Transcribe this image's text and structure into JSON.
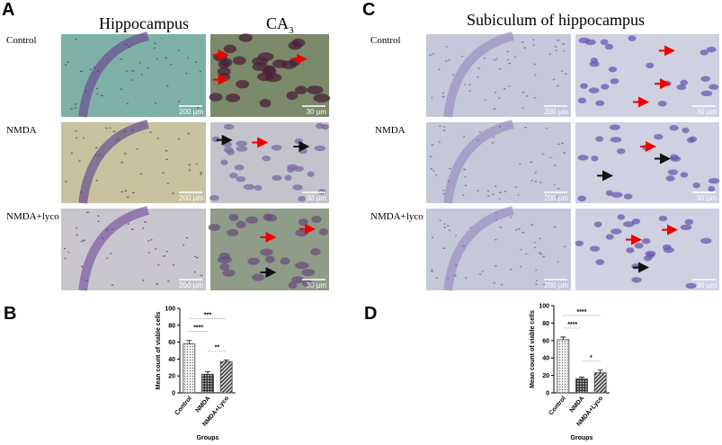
{
  "panel_labels": [
    "A",
    "B",
    "C",
    "D"
  ],
  "panel_A": {
    "titles": [
      "Hippocampus",
      "CA"
    ],
    "title_subscript": "3",
    "rows": [
      "Control",
      "NMDA",
      "NMDA+lyco"
    ],
    "scale_bars": [
      "200 µm",
      "30 µm"
    ]
  },
  "panel_C": {
    "title": "Subiculum of hippocampus",
    "rows": [
      "Control",
      "NMDA",
      "NMDA+lyco"
    ],
    "scale_bars": [
      "200 µm",
      "30 µm"
    ]
  },
  "chart_data": [
    {
      "type": "bar",
      "y_label": "Mean count of viable cells",
      "x_label": "Groups",
      "categories": [
        "Control",
        "NMDA",
        "NMDA+Lyco"
      ],
      "values": [
        58,
        22,
        37
      ],
      "errors": [
        4,
        3,
        2
      ],
      "color": "#444444",
      "ylim": [
        0,
        100
      ],
      "yticks": [
        0,
        20,
        40,
        60,
        80,
        100
      ],
      "comparisons": [
        {
          "label": "**",
          "groups": [
            "NMDA",
            "NMDA+Lyco"
          ]
        },
        {
          "label": "****",
          "groups": [
            "Control",
            "NMDA"
          ]
        },
        {
          "label": "***",
          "groups": [
            "Control",
            "NMDA+Lyco"
          ]
        }
      ]
    },
    {
      "type": "bar",
      "y_label": "Mean count of viable cells",
      "x_label": "Groups",
      "categories": [
        "Control",
        "NMDA",
        "NMDA+Lyco"
      ],
      "values": [
        61,
        16,
        23
      ],
      "errors": [
        3,
        2,
        3
      ],
      "color": "#444444",
      "ylim": [
        0,
        100
      ],
      "yticks": [
        0,
        20,
        40,
        60,
        80,
        100
      ],
      "comparisons": [
        {
          "label": "*",
          "groups": [
            "NMDA",
            "NMDA+Lyco"
          ]
        },
        {
          "label": "****",
          "groups": [
            "Control",
            "NMDA"
          ]
        },
        {
          "label": "****",
          "groups": [
            "Control",
            "NMDA+Lyco"
          ]
        }
      ]
    }
  ]
}
